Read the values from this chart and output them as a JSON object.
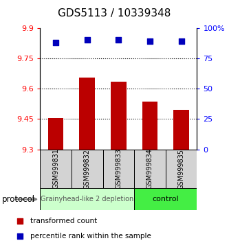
{
  "title": "GDS5113 / 10339348",
  "samples": [
    "GSM999831",
    "GSM999832",
    "GSM999833",
    "GSM999834",
    "GSM999835"
  ],
  "bar_values": [
    9.455,
    9.655,
    9.635,
    9.535,
    9.495
  ],
  "percentile_values": [
    88,
    90,
    90,
    89,
    89
  ],
  "bar_bottom": 9.3,
  "ylim_left": [
    9.3,
    9.9
  ],
  "ylim_right": [
    0,
    100
  ],
  "yticks_left": [
    9.3,
    9.45,
    9.6,
    9.75,
    9.9
  ],
  "ytick_labels_left": [
    "9.3",
    "9.45",
    "9.6",
    "9.75",
    "9.9"
  ],
  "yticks_right": [
    0,
    25,
    50,
    75,
    100
  ],
  "ytick_labels_right": [
    "0",
    "25",
    "50",
    "75",
    "100%"
  ],
  "hlines": [
    9.45,
    9.6,
    9.75
  ],
  "bar_color": "#bb0000",
  "dot_color": "#0000bb",
  "group1_label": "Grainyhead-like 2 depletion",
  "group2_label": "control",
  "group1_color": "#ccffcc",
  "group2_color": "#44ee44",
  "protocol_label": "protocol",
  "legend_bar_label": "transformed count",
  "legend_dot_label": "percentile rank within the sample",
  "bar_width": 0.5,
  "dot_size": 30,
  "title_fontsize": 11,
  "tick_fontsize": 8,
  "sample_fontsize": 7,
  "group_fontsize1": 7,
  "group_fontsize2": 8,
  "legend_fontsize": 7.5
}
